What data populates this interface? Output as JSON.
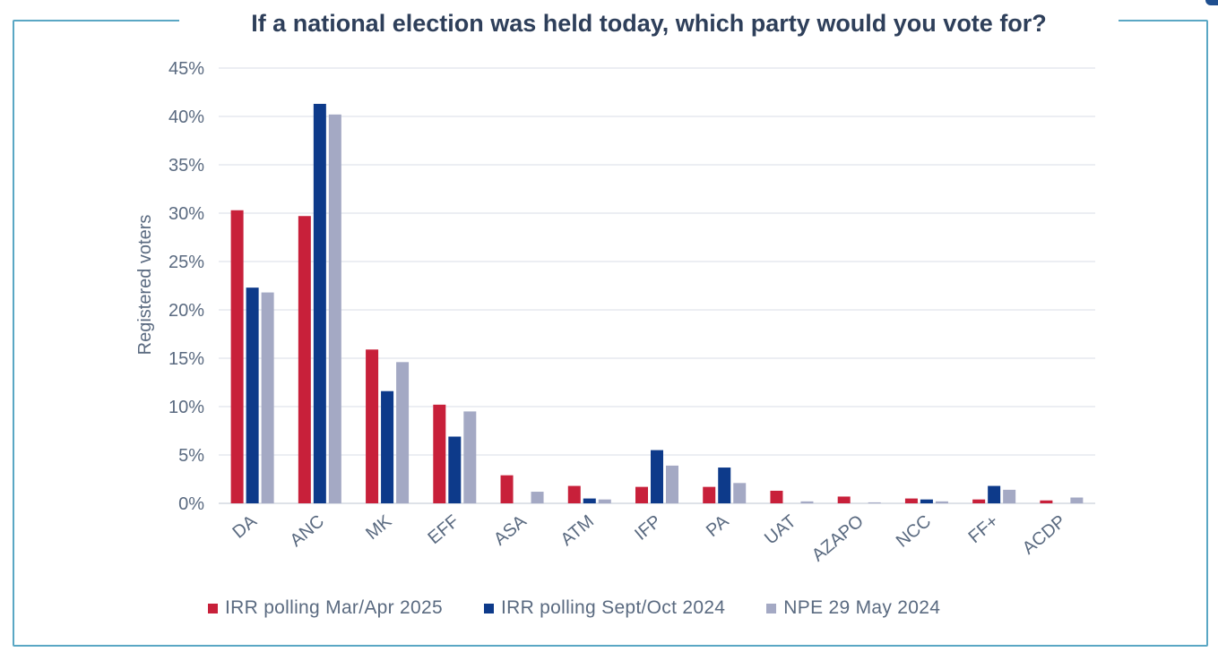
{
  "chart_data": {
    "type": "bar",
    "title": "If a national election was held today, which party would you vote for?",
    "ylabel": "Registered voters",
    "xlabel": "",
    "ylim": [
      0,
      45
    ],
    "ytick_values": [
      0,
      5,
      10,
      15,
      20,
      25,
      30,
      35,
      40,
      45
    ],
    "ytick_labels": [
      "0%",
      "5%",
      "10%",
      "15%",
      "20%",
      "25%",
      "30%",
      "35%",
      "40%",
      "45%"
    ],
    "categories": [
      "DA",
      "ANC",
      "MK",
      "EFF",
      "ASA",
      "ATM",
      "IFP",
      "PA",
      "UAT",
      "AZAPO",
      "NCC",
      "FF+",
      "ACDP"
    ],
    "series": [
      {
        "name": "IRR polling Mar/Apr 2025",
        "color": "#c8203a",
        "values": [
          30.3,
          29.7,
          15.9,
          10.2,
          2.9,
          1.8,
          1.7,
          1.7,
          1.3,
          0.7,
          0.5,
          0.4,
          0.3
        ]
      },
      {
        "name": "IRR polling Sept/Oct 2024",
        "color": "#0d3a8a",
        "values": [
          22.3,
          41.3,
          11.6,
          6.9,
          0.0,
          0.5,
          5.5,
          3.7,
          0.0,
          0.0,
          0.4,
          1.8,
          0.0
        ]
      },
      {
        "name": "NPE 29 May 2024",
        "color": "#a4a9c4",
        "values": [
          21.8,
          40.2,
          14.6,
          9.5,
          1.2,
          0.4,
          3.9,
          2.1,
          0.2,
          0.1,
          0.2,
          1.4,
          0.6
        ]
      }
    ],
    "grid": true,
    "legend_position": "bottom"
  }
}
